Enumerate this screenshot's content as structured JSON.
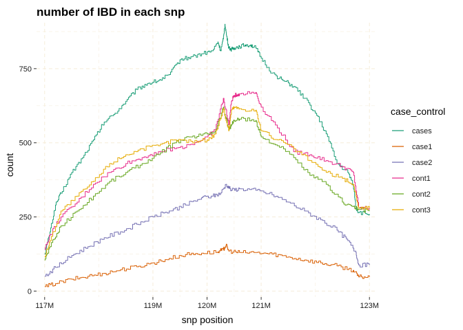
{
  "chart_data": {
    "type": "line",
    "title": "number of IBD in each snp",
    "xlabel": "snp position",
    "ylabel": "count",
    "xlim": [
      116.85,
      123.15
    ],
    "ylim": [
      -20,
      905
    ],
    "x_ticks": [
      117,
      119,
      120,
      121,
      123
    ],
    "x_tick_labels": [
      "117M",
      "119M",
      "120M",
      "121M",
      "123M"
    ],
    "y_ticks": [
      0,
      250,
      500,
      750
    ],
    "y_tick_labels": [
      "0",
      "250",
      "500",
      "750"
    ],
    "grid": true,
    "legend_position": "right",
    "legend_title": "case_control",
    "series": [
      {
        "name": "cases",
        "color": "#1b9e77",
        "x": [
          117.0,
          117.1,
          117.2,
          117.3,
          117.5,
          117.7,
          117.9,
          118.1,
          118.3,
          118.5,
          118.7,
          118.9,
          119.1,
          119.3,
          119.5,
          119.7,
          119.9,
          120.1,
          120.2,
          120.25,
          120.3,
          120.33,
          120.36,
          120.4,
          120.45,
          120.5,
          120.6,
          120.7,
          120.8,
          120.9,
          121.0,
          121.2,
          121.4,
          121.6,
          121.8,
          122.0,
          122.2,
          122.4,
          122.6,
          122.7,
          122.75,
          122.8,
          123.0
        ],
        "y": [
          125,
          200,
          290,
          330,
          400,
          450,
          510,
          570,
          600,
          640,
          680,
          700,
          710,
          730,
          780,
          790,
          800,
          810,
          840,
          810,
          850,
          900,
          860,
          820,
          815,
          820,
          825,
          830,
          830,
          820,
          785,
          735,
          710,
          690,
          650,
          600,
          530,
          430,
          400,
          360,
          280,
          265,
          260
        ]
      },
      {
        "name": "case1",
        "color": "#d95f02",
        "x": [
          117.0,
          117.2,
          117.5,
          117.8,
          118.1,
          118.4,
          118.7,
          119.0,
          119.3,
          119.6,
          119.9,
          120.2,
          120.3,
          120.35,
          120.4,
          120.6,
          120.9,
          121.2,
          121.5,
          121.8,
          122.1,
          122.4,
          122.7,
          122.8,
          123.0
        ],
        "y": [
          15,
          25,
          40,
          50,
          60,
          72,
          82,
          95,
          110,
          123,
          128,
          132,
          140,
          155,
          135,
          130,
          130,
          125,
          115,
          105,
          95,
          85,
          70,
          48,
          48
        ]
      },
      {
        "name": "case2",
        "color": "#7570b3",
        "x": [
          117.0,
          117.2,
          117.5,
          117.8,
          118.1,
          118.4,
          118.7,
          119.0,
          119.3,
          119.6,
          119.9,
          120.1,
          120.25,
          120.35,
          120.45,
          120.6,
          120.9,
          121.2,
          121.5,
          121.8,
          122.1,
          122.4,
          122.6,
          122.75,
          122.8,
          123.0
        ],
        "y": [
          50,
          80,
          120,
          150,
          180,
          200,
          225,
          250,
          270,
          290,
          315,
          320,
          330,
          360,
          340,
          345,
          340,
          325,
          300,
          270,
          240,
          205,
          170,
          130,
          88,
          88
        ]
      },
      {
        "name": "cont1",
        "color": "#e7298a",
        "x": [
          117.0,
          117.1,
          117.3,
          117.6,
          117.9,
          118.2,
          118.5,
          118.8,
          119.1,
          119.4,
          119.7,
          120.0,
          120.15,
          120.3,
          120.4,
          120.45,
          120.5,
          120.6,
          120.9,
          121.0,
          121.3,
          121.6,
          121.9,
          122.2,
          122.5,
          122.7,
          122.8,
          123.0
        ],
        "y": [
          140,
          190,
          250,
          300,
          360,
          400,
          430,
          450,
          470,
          480,
          495,
          520,
          545,
          650,
          560,
          640,
          660,
          665,
          670,
          620,
          550,
          470,
          460,
          440,
          420,
          400,
          280,
          280
        ]
      },
      {
        "name": "cont2",
        "color": "#66a61e",
        "x": [
          117.0,
          117.1,
          117.3,
          117.6,
          117.9,
          118.2,
          118.5,
          118.8,
          119.1,
          119.4,
          119.7,
          120.0,
          120.15,
          120.3,
          120.4,
          120.45,
          120.5,
          120.6,
          120.9,
          121.0,
          121.3,
          121.6,
          121.9,
          122.2,
          122.5,
          122.7,
          122.8,
          123.0
        ],
        "y": [
          105,
          150,
          220,
          270,
          320,
          370,
          400,
          430,
          460,
          500,
          520,
          530,
          540,
          620,
          545,
          560,
          575,
          580,
          575,
          520,
          490,
          450,
          390,
          360,
          300,
          285,
          275,
          270
        ]
      },
      {
        "name": "cont3",
        "color": "#e6ab02",
        "x": [
          117.0,
          117.1,
          117.3,
          117.6,
          117.9,
          118.2,
          118.5,
          118.8,
          119.1,
          119.4,
          119.7,
          120.0,
          120.15,
          120.3,
          120.4,
          120.45,
          120.5,
          120.6,
          120.9,
          121.0,
          121.3,
          121.6,
          121.9,
          122.2,
          122.5,
          122.7,
          122.8,
          123.0
        ],
        "y": [
          115,
          170,
          270,
          320,
          370,
          430,
          460,
          480,
          490,
          510,
          505,
          510,
          530,
          615,
          540,
          610,
          620,
          615,
          610,
          540,
          510,
          480,
          440,
          400,
          380,
          360,
          280,
          280
        ]
      }
    ]
  }
}
